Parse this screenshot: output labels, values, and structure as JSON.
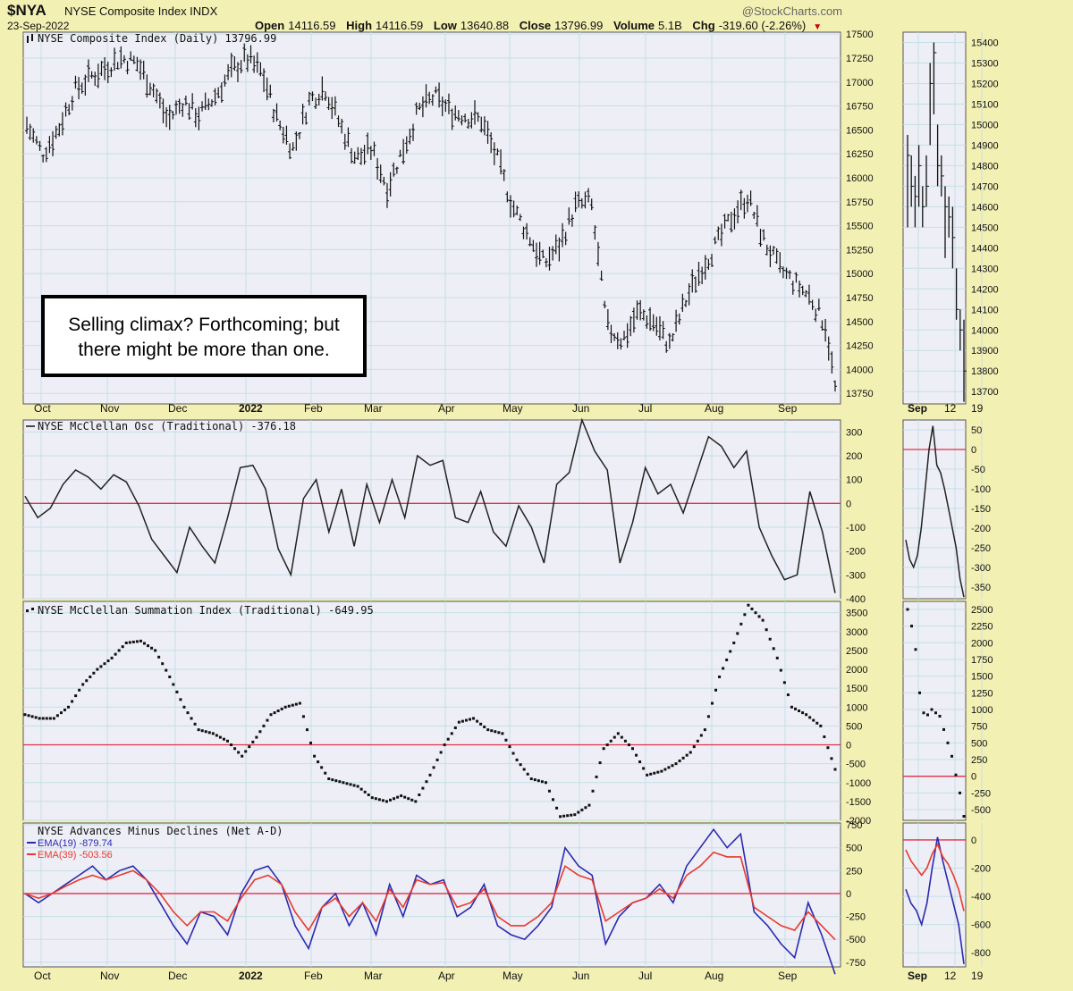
{
  "header": {
    "ticker": "$NYA",
    "name": "NYSE Composite Index INDX",
    "date": "23-Sep-2022",
    "watermark": "@StockCharts.com",
    "open_label": "Open",
    "open": "14116.59",
    "high_label": "High",
    "high": "14116.59",
    "low_label": "Low",
    "low": "13640.88",
    "close_label": "Close",
    "close": "13796.99",
    "volume_label": "Volume",
    "volume": "5.1B",
    "chg_label": "Chg",
    "chg": "-319.60 (-2.26%)"
  },
  "annotation": {
    "line1": "Selling climax? Forthcoming; but",
    "line2": "there might be more than one."
  },
  "x_axis": {
    "main_labels": [
      "Oct",
      "Nov",
      "Dec",
      "2022",
      "Feb",
      "Mar",
      "Apr",
      "May",
      "Jun",
      "Jul",
      "Aug",
      "Sep"
    ],
    "right_labels": [
      "Sep",
      "12",
      "19"
    ]
  },
  "colors": {
    "background": "#f3f0b3",
    "plot": "#eeeef6",
    "grid": "#c4e0e6",
    "zero_line": "#e0304a",
    "ema19": "#2a2ab0",
    "ema39": "#e83a2e",
    "series": "#1a1a1a"
  },
  "chart_data": [
    {
      "type": "ohlc",
      "title": "NYSE Composite Index (Daily) 13796.99",
      "y_ticks": [
        17500,
        17250,
        17000,
        16750,
        16500,
        16250,
        16000,
        15750,
        15500,
        15250,
        15000,
        14750,
        14500,
        14250,
        14000,
        13750
      ],
      "ylim": [
        13640,
        17520
      ],
      "x": [
        "Oct",
        "Nov",
        "Dec",
        "2022",
        "Feb",
        "Mar",
        "Apr",
        "May",
        "Jun",
        "Jul",
        "Aug",
        "Sep"
      ],
      "close_path": [
        [
          "2021-09-27",
          16550
        ],
        [
          "2021-10-04",
          16250
        ],
        [
          "2021-10-11",
          16500
        ],
        [
          "2021-10-18",
          16900
        ],
        [
          "2021-10-25",
          17050
        ],
        [
          "2021-11-01",
          17150
        ],
        [
          "2021-11-08",
          17250
        ],
        [
          "2021-11-15",
          17200
        ],
        [
          "2021-11-22",
          16950
        ],
        [
          "2021-11-29",
          16600
        ],
        [
          "2021-12-06",
          16800
        ],
        [
          "2021-12-13",
          16650
        ],
        [
          "2021-12-20",
          16850
        ],
        [
          "2021-12-27",
          17100
        ],
        [
          "2022-01-03",
          17250
        ],
        [
          "2022-01-10",
          17100
        ],
        [
          "2022-01-17",
          16600
        ],
        [
          "2022-01-24",
          16300
        ],
        [
          "2022-01-31",
          16800
        ],
        [
          "2022-02-07",
          16950
        ],
        [
          "2022-02-14",
          16550
        ],
        [
          "2022-02-21",
          16200
        ],
        [
          "2022-02-28",
          16300
        ],
        [
          "2022-03-07",
          15900
        ],
        [
          "2022-03-14",
          16300
        ],
        [
          "2022-03-21",
          16700
        ],
        [
          "2022-03-28",
          16850
        ],
        [
          "2022-04-04",
          16700
        ],
        [
          "2022-04-11",
          16650
        ],
        [
          "2022-04-18",
          16600
        ],
        [
          "2022-04-25",
          16200
        ],
        [
          "2022-05-02",
          15700
        ],
        [
          "2022-05-09",
          15400
        ],
        [
          "2022-05-16",
          15100
        ],
        [
          "2022-05-23",
          15300
        ],
        [
          "2022-05-30",
          15700
        ],
        [
          "2022-06-06",
          15750
        ],
        [
          "2022-06-13",
          14450
        ],
        [
          "2022-06-20",
          14300
        ],
        [
          "2022-06-27",
          14600
        ],
        [
          "2022-07-04",
          14500
        ],
        [
          "2022-07-11",
          14250
        ],
        [
          "2022-07-18",
          14700
        ],
        [
          "2022-07-25",
          15050
        ],
        [
          "2022-08-01",
          15300
        ],
        [
          "2022-08-08",
          15600
        ],
        [
          "2022-08-15",
          15800
        ],
        [
          "2022-08-22",
          15350
        ],
        [
          "2022-08-29",
          15050
        ],
        [
          "2022-09-05",
          14900
        ],
        [
          "2022-09-12",
          14750
        ],
        [
          "2022-09-19",
          14450
        ],
        [
          "2022-09-23",
          13800
        ]
      ]
    },
    {
      "type": "line",
      "title": "NYSE McClellan Osc (Traditional) -376.18",
      "y_ticks": [
        300,
        200,
        100,
        0,
        -100,
        -200,
        -300,
        -400
      ],
      "ylim": [
        -400,
        350
      ],
      "values": [
        30,
        -60,
        -20,
        80,
        140,
        110,
        60,
        120,
        90,
        -10,
        -150,
        -220,
        -290,
        -100,
        -180,
        -250,
        -60,
        150,
        160,
        60,
        -190,
        -300,
        20,
        100,
        -120,
        60,
        -180,
        80,
        -80,
        100,
        -60,
        200,
        160,
        180,
        -60,
        -80,
        50,
        -120,
        -180,
        -10,
        -100,
        -250,
        80,
        130,
        350,
        220,
        140,
        -250,
        -80,
        150,
        40,
        80,
        -40,
        120,
        280,
        240,
        150,
        220,
        -100,
        -220,
        -320,
        -300,
        50,
        -120,
        -376
      ]
    },
    {
      "type": "scatter",
      "title": "NYSE McClellan Summation Index (Traditional) -649.95",
      "y_ticks": [
        3500,
        3000,
        2500,
        2000,
        1500,
        1000,
        500,
        0,
        -500,
        -1000,
        -1500,
        -2000
      ],
      "ylim": [
        -2000,
        3800
      ],
      "values": [
        800,
        700,
        700,
        1000,
        1600,
        2000,
        2300,
        2700,
        2750,
        2500,
        1800,
        1000,
        400,
        300,
        100,
        -300,
        200,
        800,
        1000,
        1100,
        -300,
        -900,
        -1000,
        -1100,
        -1400,
        -1500,
        -1350,
        -1500,
        -800,
        0,
        600,
        700,
        400,
        300,
        -400,
        -900,
        -1000,
        -1900,
        -1850,
        -1600,
        -100,
        300,
        -100,
        -800,
        -700,
        -500,
        -200,
        400,
        1800,
        2700,
        3700,
        3300,
        2300,
        1000,
        800,
        500,
        -650
      ]
    },
    {
      "type": "line",
      "title": "NYSE Advances Minus Declines (Net A-D)",
      "y_ticks": [
        750,
        500,
        250,
        0,
        -250,
        -500,
        -750
      ],
      "ylim": [
        -800,
        770
      ],
      "series": [
        {
          "name": "EMA(19) -879.74",
          "values": [
            0,
            -100,
            0,
            100,
            200,
            300,
            150,
            250,
            300,
            150,
            -100,
            -350,
            -550,
            -200,
            -250,
            -450,
            0,
            250,
            300,
            100,
            -350,
            -600,
            -150,
            0,
            -350,
            -100,
            -450,
            100,
            -250,
            200,
            100,
            150,
            -250,
            -150,
            100,
            -350,
            -450,
            -500,
            -350,
            -150,
            500,
            300,
            200,
            -550,
            -250,
            -100,
            -50,
            100,
            -100,
            300,
            500,
            700,
            500,
            650,
            -200,
            -350,
            -550,
            -700,
            -100,
            -450,
            -880
          ]
        },
        {
          "name": "EMA(39) -503.56",
          "values": [
            0,
            -50,
            0,
            80,
            150,
            200,
            150,
            200,
            250,
            150,
            0,
            -200,
            -350,
            -200,
            -200,
            -300,
            -50,
            150,
            200,
            100,
            -200,
            -400,
            -150,
            -50,
            -250,
            -100,
            -300,
            50,
            -150,
            150,
            100,
            120,
            -150,
            -100,
            50,
            -250,
            -350,
            -350,
            -250,
            -100,
            300,
            200,
            150,
            -300,
            -200,
            -100,
            -50,
            50,
            -50,
            200,
            300,
            450,
            400,
            400,
            -150,
            -250,
            -350,
            -400,
            -200,
            -350,
            -504
          ]
        }
      ]
    }
  ],
  "right_panels": {
    "price_ticks": [
      15400,
      15300,
      15200,
      15100,
      15000,
      14900,
      14800,
      14700,
      14600,
      14500,
      14400,
      14300,
      14200,
      14100,
      14000,
      13900,
      13800,
      13700
    ],
    "osc_ticks": [
      50,
      0,
      -50,
      -100,
      -150,
      -200,
      -250,
      -300,
      -350
    ],
    "sum_ticks": [
      2500,
      2250,
      2000,
      1750,
      1500,
      1250,
      1000,
      750,
      500,
      250,
      0,
      -250,
      -500
    ],
    "ad_ticks": [
      0,
      -200,
      -400,
      -600,
      -800
    ]
  }
}
